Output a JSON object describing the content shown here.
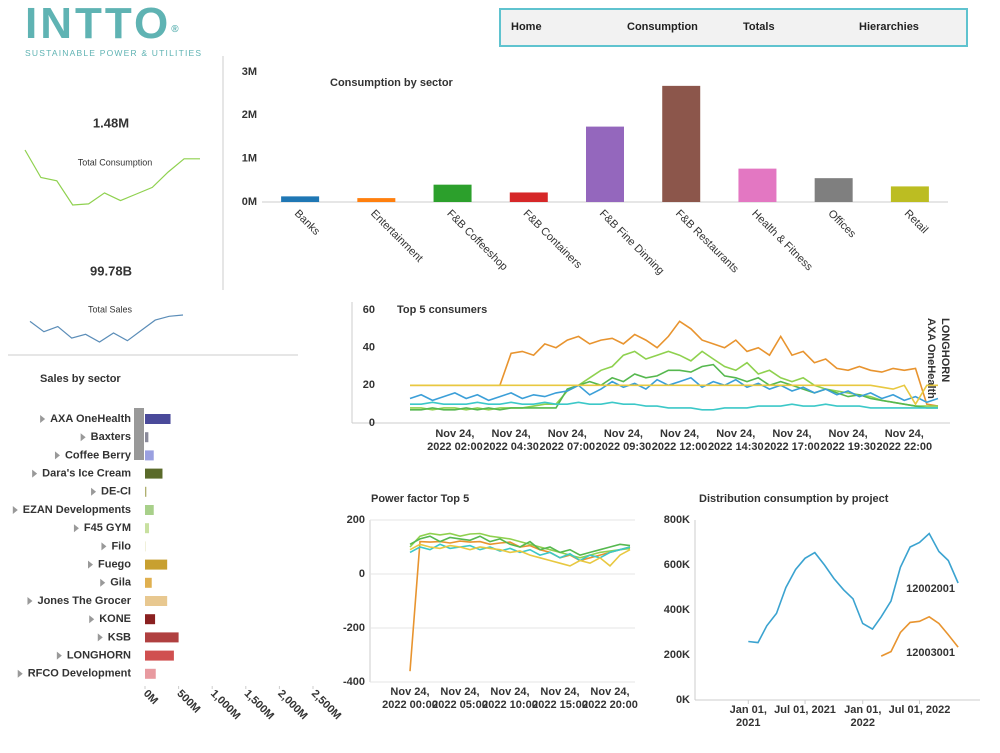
{
  "logo": {
    "name": "INTTO",
    "mark": "®",
    "tagline": "SUSTAINABLE POWER & UTILITIES"
  },
  "nav": [
    "Home",
    "Consumption",
    "Totals",
    "Hierarchies"
  ],
  "chart_data": [
    {
      "type": "sparkline",
      "title": "Total Consumption",
      "headline": "1.48M",
      "color": "#8fd14f",
      "values": [
        80,
        55,
        52,
        30,
        31,
        41,
        34,
        40,
        46,
        60,
        72,
        72
      ]
    },
    {
      "type": "sparkline",
      "title": "Total Sales",
      "headline": "99.78B",
      "color": "#5b8db8",
      "values": [
        40,
        32,
        36,
        27,
        30,
        24,
        31,
        25,
        33,
        41,
        44,
        45
      ]
    },
    {
      "type": "bar",
      "title": "Consumption by sector",
      "categories": [
        "Banks",
        "Entertainment",
        "F&B Coffeeshop",
        "F&B Containers",
        "F&B Fine Dinning",
        "F&B Restaurants",
        "Health & Fitness",
        "Offices",
        "Retail"
      ],
      "values": [
        130000,
        90000,
        400000,
        220000,
        1740000,
        2680000,
        770000,
        550000,
        360000
      ],
      "colors": [
        "#1f77b4",
        "#ff7f0e",
        "#2ca02c",
        "#d62728",
        "#9467bd",
        "#8c564b",
        "#e377c2",
        "#7f7f7f",
        "#bcbd22"
      ],
      "ylim": [
        0,
        3000000
      ],
      "yticks": [
        {
          "value": 0,
          "label": "0M"
        },
        {
          "value": 1000000,
          "label": "1M"
        },
        {
          "value": 2000000,
          "label": "2M"
        },
        {
          "value": 3000000,
          "label": "3M"
        }
      ],
      "grid": false
    },
    {
      "type": "hbar",
      "title": "Sales by sector",
      "categories": [
        "AXA OneHealth",
        "Baxters",
        "Coffee Berry",
        "Dara's Ice Cream",
        "DE-CI",
        "EZAN Developments",
        "F45 GYM",
        "Filo",
        "Fuego",
        "Gila",
        "Jones The Grocer",
        "KONE",
        "KSB",
        "LONGHORN",
        "RFCO Development"
      ],
      "values": [
        380000000,
        50000000,
        130000000,
        260000000,
        20000000,
        130000000,
        60000000,
        10000000,
        330000000,
        100000000,
        330000000,
        150000000,
        500000000,
        430000000,
        160000000
      ],
      "colors": [
        "#4a4a9a",
        "#8a8a9a",
        "#9aa0e0",
        "#5a6a2a",
        "#b0b070",
        "#a8d08a",
        "#c8e0a0",
        "#e8e8c8",
        "#c8a030",
        "#e0b050",
        "#e8c890",
        "#8a2020",
        "#b04040",
        "#d05050",
        "#e89aa0"
      ],
      "xlim": [
        0,
        2500000000
      ],
      "xticks": [
        {
          "value": 0,
          "label": "0M"
        },
        {
          "value": 500000000,
          "label": "500M"
        },
        {
          "value": 1000000000,
          "label": "1,000M"
        },
        {
          "value": 1500000000,
          "label": "1,500M"
        },
        {
          "value": 2000000000,
          "label": "2,000M"
        },
        {
          "value": 2500000000,
          "label": "2,500M"
        }
      ]
    },
    {
      "type": "line",
      "title": "Top 5 consumers",
      "categories": [
        null,
        null,
        null,
        null,
        "Nov 24, 2022 02:00",
        null,
        null,
        null,
        null,
        "Nov 24, 2022 04:30",
        null,
        null,
        null,
        null,
        "Nov 24, 2022 07:00",
        null,
        null,
        null,
        null,
        "Nov 24, 2022 09:30",
        null,
        null,
        null,
        null,
        "Nov 24, 2022 12:00",
        null,
        null,
        null,
        null,
        "Nov 24, 2022 14:30",
        null,
        null,
        null,
        null,
        "Nov 24, 2022 17:00",
        null,
        null,
        null,
        null,
        "Nov 24, 2022 19:30",
        null,
        null,
        null,
        null,
        "Nov 24, 2022 22:00",
        null,
        null,
        null
      ],
      "ylim": [
        0,
        60
      ],
      "yticks": [
        0,
        20,
        40,
        60
      ],
      "grid": false,
      "series": [
        {
          "name": "LONGHORN",
          "color": "#e8942f",
          "values": [
            20,
            20,
            20,
            20,
            20,
            20,
            20,
            20,
            20,
            37,
            38,
            36,
            42,
            40,
            44,
            46,
            42,
            44,
            45,
            42,
            47,
            44,
            40,
            46,
            54,
            50,
            44,
            42,
            40,
            44,
            38,
            40,
            36,
            46,
            36,
            38,
            32,
            34,
            29,
            28,
            30,
            28,
            27,
            29,
            28,
            29,
            10,
            9
          ]
        },
        {
          "name": "AXA OneHealth",
          "color": "#8fd14f",
          "values": [
            8,
            8,
            7,
            8,
            8,
            7,
            8,
            7,
            8,
            8,
            8,
            9,
            10,
            10,
            17,
            20,
            24,
            28,
            30,
            36,
            38,
            34,
            36,
            38,
            36,
            33,
            38,
            34,
            30,
            28,
            32,
            26,
            28,
            24,
            22,
            24,
            20,
            18,
            17,
            16,
            15,
            14,
            12,
            11,
            10,
            9,
            9,
            9
          ]
        },
        {
          "color": "#56b84f",
          "values": [
            7,
            7,
            8,
            7,
            7,
            8,
            7,
            8,
            7,
            8,
            8,
            8,
            8,
            8,
            18,
            20,
            22,
            20,
            24,
            22,
            26,
            24,
            25,
            28,
            28,
            27,
            30,
            31,
            25,
            24,
            22,
            24,
            20,
            22,
            20,
            18,
            16,
            18,
            16,
            14,
            15,
            13,
            12,
            11,
            10,
            9,
            8,
            8
          ]
        },
        {
          "color": "#3b9fd8",
          "values": [
            13,
            15,
            12,
            14,
            16,
            13,
            15,
            12,
            14,
            16,
            13,
            15,
            14,
            16,
            17,
            20,
            15,
            18,
            22,
            19,
            21,
            18,
            23,
            20,
            22,
            24,
            19,
            22,
            20,
            23,
            19,
            21,
            18,
            20,
            17,
            19,
            16,
            18,
            15,
            17,
            14,
            16,
            13,
            15,
            12,
            14,
            11,
            13
          ]
        },
        {
          "color": "#e8c840",
          "values": [
            20,
            20,
            20,
            20,
            20,
            20,
            20,
            20,
            20,
            20,
            20,
            20,
            20,
            20,
            20,
            20,
            20,
            20,
            20,
            20,
            20,
            20,
            20,
            20,
            20,
            20,
            20,
            20,
            20,
            20,
            20,
            20,
            20,
            20,
            20,
            20,
            20,
            20,
            20,
            20,
            20,
            20,
            19,
            18,
            20,
            10,
            20,
            20
          ]
        },
        {
          "color": "#3cc8c8",
          "values": [
            10,
            10,
            11,
            10,
            10,
            10,
            11,
            10,
            10,
            11,
            10,
            10,
            11,
            10,
            10,
            11,
            10,
            10,
            11,
            10,
            10,
            9,
            9,
            8,
            8,
            8,
            7,
            7,
            8,
            8,
            8,
            9,
            9,
            9,
            10,
            9,
            9,
            10,
            9,
            9,
            9,
            8,
            8,
            8,
            8,
            8,
            8,
            8
          ]
        }
      ]
    },
    {
      "type": "line",
      "title": "Power factor Top 5",
      "categories": [
        "Nov 24, 2022 00:00",
        null,
        null,
        null,
        null,
        "Nov 24, 2022 05:00",
        null,
        null,
        null,
        null,
        "Nov 24, 2022 10:00",
        null,
        null,
        null,
        null,
        "Nov 24, 2022 15:00",
        null,
        null,
        null,
        null,
        "Nov 24, 2022 20:00",
        null,
        null
      ],
      "ylim": [
        -400,
        200
      ],
      "yticks": [
        -400,
        -200,
        0,
        200
      ],
      "grid": true,
      "series": [
        {
          "color": "#e8942f",
          "values": [
            -360,
            120,
            118,
            120,
            115,
            122,
            118,
            120,
            110,
            115,
            118,
            100,
            105,
            90,
            80,
            60,
            70,
            50,
            60,
            70,
            80,
            90,
            100
          ]
        },
        {
          "color": "#8fd14f",
          "values": [
            100,
            140,
            150,
            145,
            150,
            140,
            148,
            150,
            140,
            135,
            130,
            120,
            110,
            100,
            90,
            80,
            70,
            60,
            70,
            80,
            85,
            90,
            95
          ]
        },
        {
          "color": "#56b84f",
          "values": [
            110,
            130,
            140,
            120,
            135,
            130,
            125,
            140,
            120,
            130,
            110,
            100,
            120,
            90,
            100,
            80,
            90,
            70,
            80,
            90,
            100,
            110,
            105
          ]
        },
        {
          "color": "#3cc8c8",
          "values": [
            80,
            100,
            90,
            110,
            95,
            100,
            105,
            90,
            100,
            85,
            95,
            80,
            90,
            70,
            80,
            60,
            75,
            50,
            70,
            60,
            80,
            90,
            100
          ]
        },
        {
          "color": "#e8c840",
          "values": [
            90,
            110,
            100,
            95,
            105,
            100,
            90,
            100,
            95,
            90,
            80,
            85,
            70,
            60,
            50,
            40,
            30,
            50,
            40,
            60,
            30,
            70,
            90
          ]
        }
      ]
    },
    {
      "type": "line",
      "title": "Distribution consumption by project",
      "x": [
        "2021-01-01",
        "2021-02-01",
        "2021-03-01",
        "2021-04-01",
        "2021-05-01",
        "2021-06-01",
        "2021-07-01",
        "2021-08-01",
        "2021-09-01",
        "2021-10-01",
        "2021-11-01",
        "2021-12-01",
        "2022-01-01",
        "2022-02-01",
        "2022-03-01",
        "2022-04-01",
        "2022-05-01",
        "2022-06-01",
        "2022-07-01",
        "2022-08-01",
        "2022-09-01",
        "2022-10-01",
        "2022-11-01"
      ],
      "xlim": [
        "2020-07-15",
        "2023-01-10"
      ],
      "xticks": [
        {
          "value": "2021-01-01",
          "label": "Jan 01, 2021"
        },
        {
          "value": "2021-07-01",
          "label": "Jul 01, 2021"
        },
        {
          "value": "2022-01-01",
          "label": "Jan 01, 2022"
        },
        {
          "value": "2022-07-01",
          "label": "Jul 01, 2022"
        }
      ],
      "ylim": [
        0,
        800000
      ],
      "yticks": [
        {
          "value": 0,
          "label": "0K"
        },
        {
          "value": 200000,
          "label": "200K"
        },
        {
          "value": 400000,
          "label": "400K"
        },
        {
          "value": 600000,
          "label": "600K"
        },
        {
          "value": 800000,
          "label": "800K"
        }
      ],
      "grid": false,
      "series": [
        {
          "name": "12002001",
          "color": "#3ba3d0",
          "values": [
            260000,
            255000,
            330000,
            385000,
            500000,
            580000,
            630000,
            655000,
            600000,
            540000,
            490000,
            450000,
            340000,
            315000,
            370000,
            440000,
            590000,
            680000,
            700000,
            740000,
            660000,
            620000,
            520000
          ]
        },
        {
          "name": "12003001",
          "color": "#e8942f",
          "values": [
            null,
            null,
            null,
            null,
            null,
            null,
            null,
            null,
            null,
            null,
            null,
            null,
            null,
            null,
            195000,
            215000,
            300000,
            345000,
            350000,
            370000,
            340000,
            290000,
            235000
          ]
        }
      ]
    }
  ]
}
